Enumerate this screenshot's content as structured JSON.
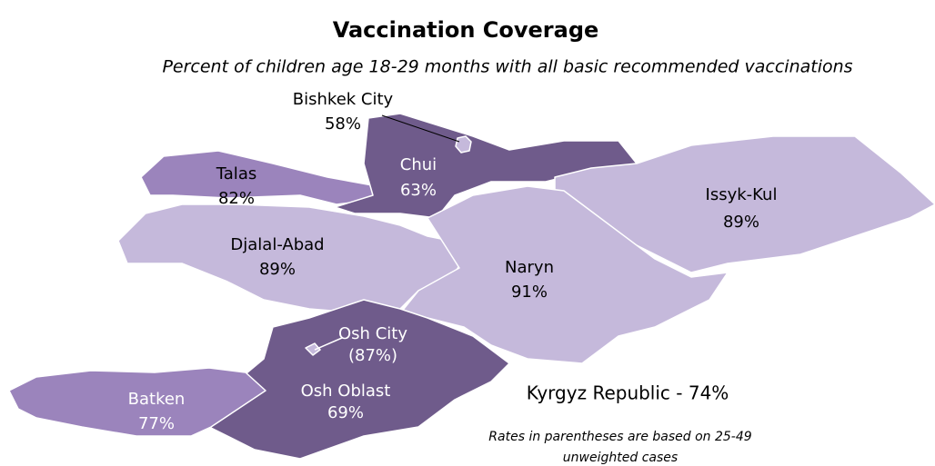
{
  "title": "Vaccination Coverage",
  "subtitle": "Percent of children age 18-29 months with all basic recommended vaccinations",
  "regions": [
    {
      "name": "Talas",
      "label": "82%",
      "color": "#9b84bc"
    },
    {
      "name": "Chui",
      "label": "63%",
      "color": "#6f5b8b"
    },
    {
      "name": "Issyk-Kul",
      "label": "89%",
      "color": "#c5b9db"
    },
    {
      "name": "Djalal-Abad",
      "label": "89%",
      "color": "#c5b9db"
    },
    {
      "name": "Naryn",
      "label": "91%",
      "color": "#c5b9db"
    },
    {
      "name": "Osh Oblast",
      "label": "69%",
      "color": "#6f5b8b"
    },
    {
      "name": "Batken",
      "label": "77%",
      "color": "#9b84bc"
    },
    {
      "name": "Bishkek City",
      "label": "58%",
      "color": "#c5b9db"
    },
    {
      "name": "Osh City",
      "label": "(87%)",
      "color": "#c5b9db"
    }
  ],
  "national": "Kyrgyz Republic - 74%",
  "note": [
    "Rates in parentheses are based on 25-49",
    "unweighted cases"
  ]
}
